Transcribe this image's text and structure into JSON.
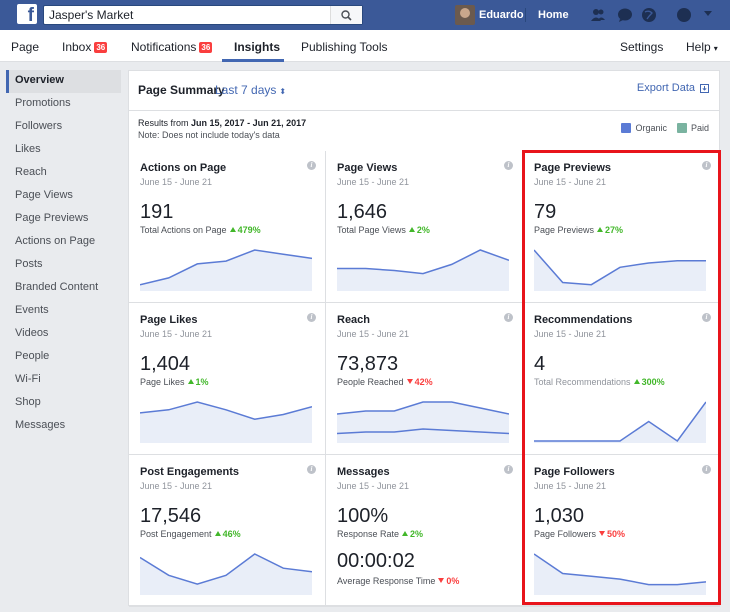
{
  "topbar": {
    "search_value": "Jasper's Market",
    "user_name": "Eduardo",
    "home_label": "Home",
    "brand_color": "#3b5998"
  },
  "nav": {
    "page": "Page",
    "inbox": "Inbox",
    "inbox_badge": "36",
    "notifications": "Notifications",
    "notifications_badge": "36",
    "insights": "Insights",
    "publishing_tools": "Publishing Tools",
    "settings": "Settings",
    "help": "Help"
  },
  "sidebar": {
    "items": [
      {
        "label": "Overview"
      },
      {
        "label": "Promotions"
      },
      {
        "label": "Followers"
      },
      {
        "label": "Likes"
      },
      {
        "label": "Reach"
      },
      {
        "label": "Page Views"
      },
      {
        "label": "Page Previews"
      },
      {
        "label": "Actions on Page"
      },
      {
        "label": "Posts"
      },
      {
        "label": "Branded Content"
      },
      {
        "label": "Events"
      },
      {
        "label": "Videos"
      },
      {
        "label": "People"
      },
      {
        "label": "Wi-Fi"
      },
      {
        "label": "Shop"
      },
      {
        "label": "Messages"
      }
    ]
  },
  "summary": {
    "title": "Page Summary",
    "range": "Last 7 days",
    "export": "Export Data",
    "results_prefix": "Results from",
    "results_range": "Jun 15, 2017 - Jun 21, 2017",
    "note": "Note: Does not include today's data",
    "legend": [
      {
        "label": "Organic",
        "color": "#5b7bd5"
      },
      {
        "label": "Paid",
        "color": "#7ab3a0"
      }
    ]
  },
  "cards": [
    {
      "title": "Actions on Page",
      "date": "June 15 - June 21",
      "value": "191",
      "label": "Total Actions on Page",
      "change": "479%",
      "dir": "up",
      "spark": [
        3,
        8,
        18,
        20,
        28,
        25,
        22
      ]
    },
    {
      "title": "Page Views",
      "date": "June 15 - June 21",
      "value": "1,646",
      "label": "Total Page Views",
      "change": "2%",
      "dir": "up",
      "spark": [
        20,
        20,
        18,
        15,
        24,
        38,
        28
      ]
    },
    {
      "title": "Page Previews",
      "date": "June 15 - June 21",
      "value": "79",
      "label": "Page Previews",
      "change": "27%",
      "dir": "up",
      "spark": [
        18,
        3,
        2,
        10,
        12,
        13,
        13
      ]
    },
    {
      "title": "Page Likes",
      "date": "June 15 - June 21",
      "value": "1,404",
      "label": "Page Likes",
      "change": "1%",
      "dir": "up",
      "spark": [
        18,
        20,
        25,
        20,
        14,
        17,
        22
      ]
    },
    {
      "title": "Reach",
      "date": "June 15 - June 21",
      "value": "73,873",
      "label": "People Reached",
      "change": "42%",
      "dir": "down",
      "spark": [
        18,
        20,
        20,
        26,
        26,
        22,
        18
      ],
      "spark2": [
        5,
        6,
        6,
        8,
        7,
        6,
        5
      ]
    },
    {
      "title": "Recommendations",
      "date": "June 15 - June 21",
      "value": "4",
      "label": "Total Recommendations",
      "change": "300%",
      "dir": "up",
      "muted": true,
      "spark": [
        0,
        0,
        0,
        0,
        1,
        0,
        2
      ]
    },
    {
      "title": "Post Engagements",
      "date": "June 15 - June 21",
      "value": "17,546",
      "label": "Post Engagement",
      "change": "46%",
      "dir": "up",
      "spark": [
        20,
        10,
        5,
        10,
        22,
        14,
        12
      ]
    },
    {
      "title": "Messages",
      "date": "June 15 - June 21",
      "value": "100%",
      "label": "Response Rate",
      "change": "2%",
      "dir": "up",
      "value2": "00:00:02",
      "label2": "Average Response Time",
      "change2": "0%",
      "dir2": "down"
    },
    {
      "title": "Page Followers",
      "date": "June 15 - June 21",
      "value": "1,030",
      "label": "Page Followers",
      "change": "50%",
      "dir": "down",
      "spark": [
        14,
        7,
        6,
        5,
        3,
        3,
        4
      ]
    }
  ]
}
